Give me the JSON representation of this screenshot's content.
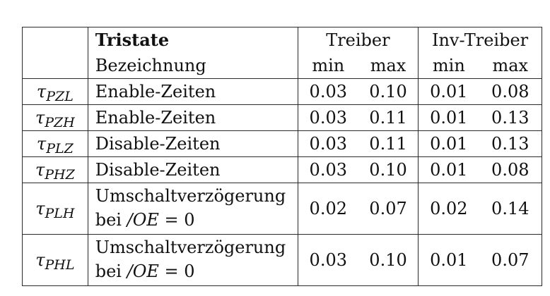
{
  "header": {
    "col_tristate_title": "Tristate",
    "col_tristate_sub": "Bezeichnung",
    "group_treiber": "Treiber",
    "group_inv_treiber": "Inv-Treiber",
    "min": "min",
    "max": "max"
  },
  "rows": [
    {
      "sym": "τ",
      "sub": "PZL",
      "desc": "Enable-Zeiten",
      "t_min": "0.03",
      "t_max": "0.10",
      "i_min": "0.01",
      "i_max": "0.08"
    },
    {
      "sym": "τ",
      "sub": "PZH",
      "desc": "Enable-Zeiten",
      "t_min": "0.03",
      "t_max": "0.11",
      "i_min": "0.01",
      "i_max": "0.13"
    },
    {
      "sym": "τ",
      "sub": "PLZ",
      "desc": "Disable-Zeiten",
      "t_min": "0.03",
      "t_max": "0.11",
      "i_min": "0.01",
      "i_max": "0.13"
    },
    {
      "sym": "τ",
      "sub": "PHZ",
      "desc": "Disable-Zeiten",
      "t_min": "0.03",
      "t_max": "0.10",
      "i_min": "0.01",
      "i_max": "0.08"
    },
    {
      "sym": "τ",
      "sub": "PLH",
      "desc_line1": "Umschaltverzögerung",
      "desc_line2_pre": "bei ",
      "desc_line2_expr": "/OE",
      "desc_line2_post": " = 0",
      "t_min": "0.02",
      "t_max": "0.07",
      "i_min": "0.02",
      "i_max": "0.14"
    },
    {
      "sym": "τ",
      "sub": "PHL",
      "desc_line1": "Umschaltverzögerung",
      "desc_line2_pre": "bei ",
      "desc_line2_expr": "/OE",
      "desc_line2_post": " = 0",
      "t_min": "0.03",
      "t_max": "0.10",
      "i_min": "0.01",
      "i_max": "0.07"
    }
  ]
}
